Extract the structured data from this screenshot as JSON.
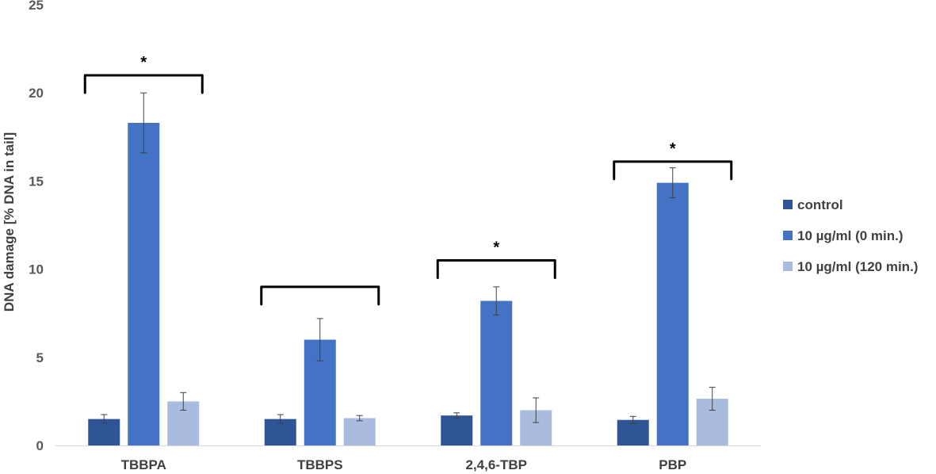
{
  "chart_data": {
    "type": "bar",
    "title": "",
    "xlabel": "",
    "ylabel": "DNA damage [% DNA in tail]",
    "ylim": [
      0,
      25
    ],
    "yticks": [
      0,
      5,
      10,
      15,
      20,
      25
    ],
    "categories": [
      "TBBPA",
      "TBBPS",
      "2,4,6-TBP",
      "PBP"
    ],
    "series": [
      {
        "name": "control",
        "color": "#2f5597",
        "values": [
          1.5,
          1.5,
          1.7,
          1.45
        ],
        "errors": [
          0.25,
          0.25,
          0.15,
          0.2
        ]
      },
      {
        "name": "10 µg/ml (0 min.)",
        "color": "#4472c4",
        "values": [
          18.3,
          6.0,
          8.2,
          14.9
        ],
        "errors": [
          1.7,
          1.2,
          0.8,
          0.85
        ]
      },
      {
        "name": "10 µg/ml (120 min.)",
        "color": "#a9bbdf",
        "values": [
          2.5,
          1.55,
          2.0,
          2.65
        ],
        "errors": [
          0.5,
          0.15,
          0.7,
          0.65
        ]
      }
    ],
    "significance": [
      {
        "category": "TBBPA",
        "mark": "*"
      },
      {
        "category": "TBBPS",
        "mark": ""
      },
      {
        "category": "2,4,6-TBP",
        "mark": "*"
      },
      {
        "category": "PBP",
        "mark": "*"
      }
    ],
    "bracket_level": [
      21,
      9,
      10.5,
      16.1
    ],
    "legend_position": "right",
    "grid": false
  }
}
